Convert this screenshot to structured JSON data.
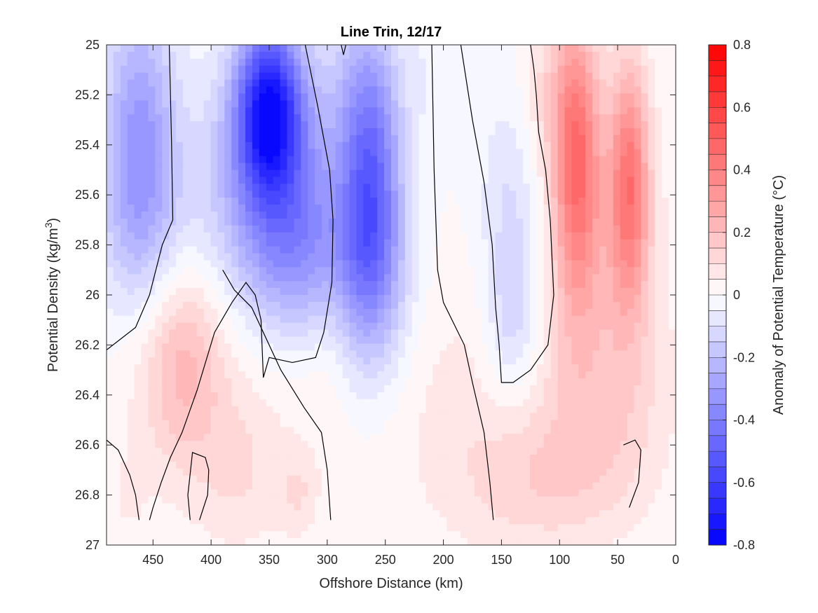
{
  "chart_data": {
    "type": "heatmap",
    "title": "Line Trin, 12/17",
    "xlabel": "Offshore Distance (km)",
    "ylabel": "Potential Density (kg/m",
    "ylabel_sup": "3",
    "ylabel_close": ")",
    "colorbar_label": "Anomaly of Potential Temperature (°C)",
    "xlim": [
      490,
      0
    ],
    "ylim": [
      25,
      27
    ],
    "x_reversed": true,
    "y_reversed": true,
    "xticks": [
      450,
      400,
      350,
      300,
      250,
      200,
      150,
      100,
      50,
      0
    ],
    "xtick_labels": [
      "450",
      "400",
      "350",
      "300",
      "250",
      "200",
      "150",
      "100",
      "50",
      "0"
    ],
    "yticks": [
      25,
      25.2,
      25.4,
      25.6,
      25.8,
      26,
      26.2,
      26.4,
      26.6,
      26.8,
      27
    ],
    "ytick_labels": [
      "25",
      "25.2",
      "25.4",
      "25.6",
      "25.8",
      "26",
      "26.2",
      "26.4",
      "26.6",
      "26.8",
      "27"
    ],
    "colorbar_ticks": [
      0.8,
      0.6,
      0.4,
      0.2,
      0,
      -0.2,
      -0.4,
      -0.6,
      -0.8
    ],
    "colorbar_tick_labels": [
      "0.8",
      "0.6",
      "0.4",
      "0.2",
      "0",
      "-0.2",
      "-0.4",
      "-0.6",
      "-0.8"
    ],
    "clim": [
      -0.8,
      0.8
    ],
    "color_levels": 32,
    "colors": {
      "negative": "#0000ff",
      "zero": "#ffffff",
      "positive": "#ff0000",
      "contour": "#000000"
    },
    "grid": false,
    "features": [
      {
        "x": 462,
        "y": 25.3,
        "value": -0.26,
        "sx": 22,
        "sy": 0.38
      },
      {
        "x": 460,
        "y": 25.7,
        "value": -0.15,
        "sx": 26,
        "sy": 0.3
      },
      {
        "x": 350,
        "y": 25.25,
        "value": -0.64,
        "sx": 20,
        "sy": 0.24
      },
      {
        "x": 345,
        "y": 25.6,
        "value": -0.32,
        "sx": 42,
        "sy": 0.35
      },
      {
        "x": 318,
        "y": 25.85,
        "value": -0.16,
        "sx": 30,
        "sy": 0.22
      },
      {
        "x": 262,
        "y": 25.6,
        "value": -0.38,
        "sx": 18,
        "sy": 0.35
      },
      {
        "x": 262,
        "y": 25.95,
        "value": -0.18,
        "sx": 25,
        "sy": 0.3
      },
      {
        "x": 268,
        "y": 25.15,
        "value": -0.15,
        "sx": 22,
        "sy": 0.25
      },
      {
        "x": 140,
        "y": 25.75,
        "value": -0.14,
        "sx": 20,
        "sy": 0.4
      },
      {
        "x": 140,
        "y": 26.15,
        "value": -0.09,
        "sx": 16,
        "sy": 0.2
      },
      {
        "x": 210,
        "y": 25.1,
        "value": -0.04,
        "sx": 14,
        "sy": 0.2
      },
      {
        "x": 85,
        "y": 25.45,
        "value": 0.4,
        "sx": 14,
        "sy": 0.4
      },
      {
        "x": 40,
        "y": 25.55,
        "value": 0.38,
        "sx": 12,
        "sy": 0.35
      },
      {
        "x": 65,
        "y": 25.9,
        "value": 0.12,
        "sx": 40,
        "sy": 0.45
      },
      {
        "x": 110,
        "y": 25.2,
        "value": 0.1,
        "sx": 18,
        "sy": 0.25
      },
      {
        "x": 425,
        "y": 26.25,
        "value": 0.18,
        "sx": 25,
        "sy": 0.28
      },
      {
        "x": 390,
        "y": 26.45,
        "value": 0.07,
        "sx": 60,
        "sy": 0.35
      },
      {
        "x": 180,
        "y": 26.45,
        "value": 0.07,
        "sx": 55,
        "sy": 0.4
      },
      {
        "x": 120,
        "y": 26.75,
        "value": 0.1,
        "sx": 45,
        "sy": 0.2
      },
      {
        "x": 60,
        "y": 26.5,
        "value": 0.1,
        "sx": 40,
        "sy": 0.3
      },
      {
        "x": 375,
        "y": 26.75,
        "value": 0.06,
        "sx": 25,
        "sy": 0.2
      },
      {
        "x": 325,
        "y": 26.8,
        "value": 0.08,
        "sx": 12,
        "sy": 0.12
      },
      {
        "x": 470,
        "y": 26.8,
        "value": 0.05,
        "sx": 10,
        "sy": 0.12
      },
      {
        "x": 300,
        "y": 26.1,
        "value": 0.05,
        "sx": 15,
        "sy": 0.3
      },
      {
        "x": 440,
        "y": 25.2,
        "value": 0.0,
        "sx": 10,
        "sy": 0.2
      }
    ],
    "zero_contours": [
      [
        [
          490,
          26.22
        ],
        [
          465,
          26.13
        ],
        [
          453,
          26.0
        ],
        [
          442,
          25.8
        ],
        [
          433,
          25.7
        ],
        [
          434,
          25.4
        ],
        [
          436,
          25.0
        ]
      ],
      [
        [
          319,
          25.0
        ],
        [
          308,
          25.25
        ],
        [
          298,
          25.5
        ],
        [
          295,
          25.7
        ],
        [
          296,
          25.95
        ],
        [
          303,
          26.15
        ],
        [
          310,
          26.25
        ],
        [
          330,
          26.27
        ],
        [
          350,
          26.25
        ],
        [
          355,
          26.33
        ],
        [
          357,
          26.1
        ],
        [
          362,
          26.0
        ],
        [
          370,
          25.95
        ],
        [
          382,
          26.03
        ],
        [
          397,
          26.15
        ],
        [
          412,
          26.38
        ],
        [
          425,
          26.55
        ],
        [
          435,
          26.65
        ],
        [
          443,
          26.75
        ],
        [
          450,
          26.85
        ],
        [
          453,
          26.9
        ]
      ],
      [
        [
          288,
          25.0
        ],
        [
          286,
          25.04
        ],
        [
          284,
          25.0
        ]
      ],
      [
        [
          210,
          25.0
        ],
        [
          208,
          25.5
        ],
        [
          205,
          25.9
        ],
        [
          200,
          26.03
        ],
        [
          182,
          26.2
        ],
        [
          175,
          26.35
        ],
        [
          165,
          26.55
        ],
        [
          160,
          26.75
        ],
        [
          157,
          26.9
        ]
      ],
      [
        [
          185,
          25.0
        ],
        [
          175,
          25.3
        ],
        [
          165,
          25.55
        ],
        [
          158,
          25.8
        ],
        [
          155,
          26.05
        ],
        [
          152,
          26.2
        ],
        [
          150,
          26.35
        ],
        [
          140,
          26.35
        ],
        [
          125,
          26.3
        ],
        [
          110,
          26.2
        ],
        [
          105,
          26.0
        ],
        [
          108,
          25.7
        ],
        [
          112,
          25.5
        ],
        [
          118,
          25.35
        ],
        [
          120,
          25.2
        ],
        [
          122,
          25.1
        ],
        [
          125,
          25.0
        ]
      ],
      [
        [
          297,
          26.9
        ],
        [
          300,
          26.7
        ],
        [
          305,
          26.55
        ],
        [
          320,
          26.45
        ],
        [
          340,
          26.3
        ],
        [
          350,
          26.2
        ],
        [
          365,
          26.05
        ],
        [
          380,
          25.98
        ],
        [
          390,
          25.9
        ]
      ],
      [
        [
          490,
          26.58
        ],
        [
          480,
          26.62
        ],
        [
          470,
          26.72
        ],
        [
          465,
          26.8
        ],
        [
          462,
          26.9
        ]
      ],
      [
        [
          410,
          26.9
        ],
        [
          403,
          26.8
        ],
        [
          402,
          26.7
        ],
        [
          405,
          26.65
        ],
        [
          416,
          26.63
        ],
        [
          420,
          26.8
        ],
        [
          418,
          26.9
        ]
      ],
      [
        [
          40,
          26.85
        ],
        [
          32,
          26.75
        ],
        [
          30,
          26.62
        ],
        [
          35,
          26.58
        ],
        [
          45,
          26.6
        ]
      ]
    ]
  }
}
